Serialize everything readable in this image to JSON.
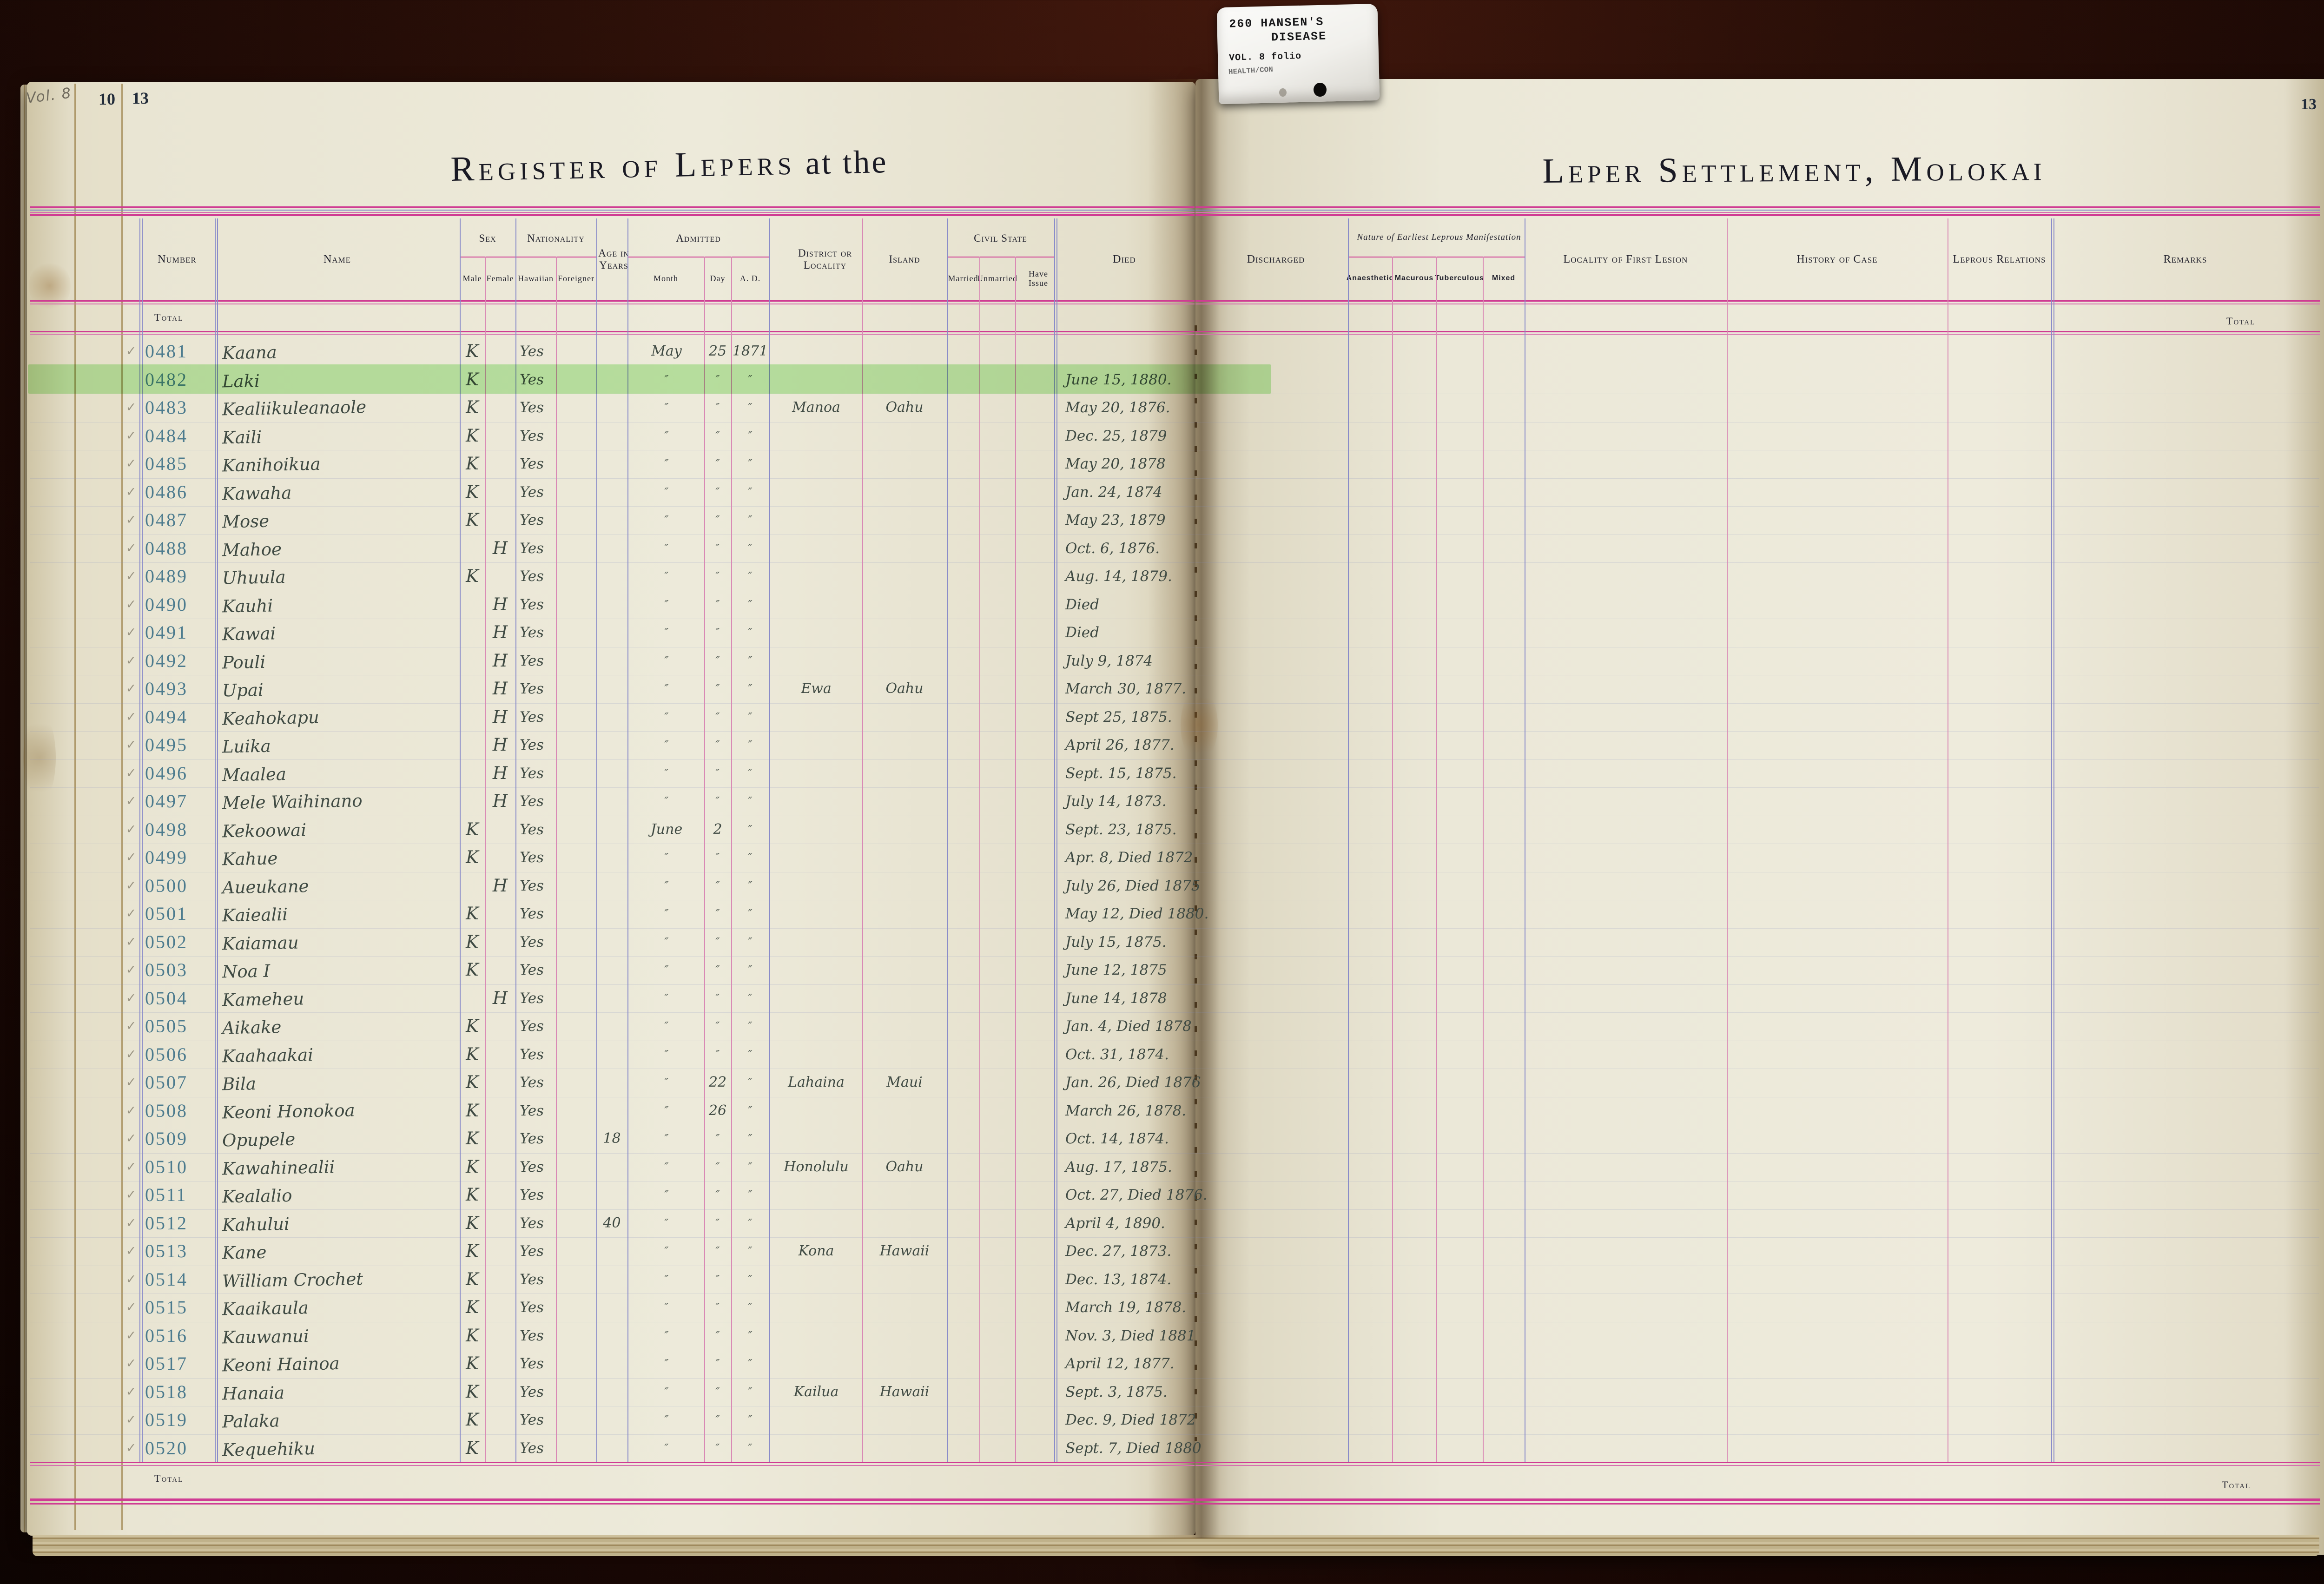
{
  "tab": {
    "line1": "260  HANSEN'S",
    "line2": "DISEASE",
    "line3": "VOL. 8 folio",
    "line4": "HEALTH/CON"
  },
  "page_left": {
    "vol_note": "Vol. 8",
    "edge_number": "10",
    "page_number": "13",
    "title_main": "Register of Lepers",
    "title_suffix": " at the"
  },
  "page_right": {
    "page_number": "13",
    "title": "Leper Settlement, Molokai"
  },
  "headers": {
    "number": "Number",
    "name": "Name",
    "sex": {
      "label": "Sex",
      "male": "Male",
      "female": "Female"
    },
    "nationality": {
      "label": "Nationality",
      "hawaiian": "Hawaiian",
      "foreigner": "Foreigner"
    },
    "age": "Age in Years",
    "admitted": {
      "label": "Admitted",
      "month": "Month",
      "day": "Day",
      "ad": "A. D."
    },
    "district": "District or Locality",
    "island": "Island",
    "civil": {
      "label": "Civil State",
      "married": "Married",
      "unmarried": "Unmarried",
      "have_issue": "Have Issue"
    },
    "died": "Died",
    "discharged": "Discharged",
    "nature": {
      "label": "Nature of Earliest Leprous Manifestation",
      "anaesthetic": "Anaesthetic",
      "macurous": "Macurous",
      "tuberculous": "Tuberculous",
      "mixed": "Mixed"
    },
    "locality_first_lesion": "Locality of First Lesion",
    "history_of_case": "History of Case",
    "leprous_relations": "Leprous Relations",
    "remarks": "Remarks"
  },
  "totals": {
    "top_left": "Total",
    "top_right": "Total",
    "bottom_left": "Total",
    "bottom_right": "Total"
  },
  "marks": {
    "check": "✓",
    "ditto": "″",
    "male_mark": "K",
    "female_mark": "H"
  },
  "colors": {
    "rule_pink": "#cf3c93",
    "rule_blue": "#8a8cc9",
    "ink": "#3f4a43",
    "number_ink": "#4c7b8e",
    "highlight_green": "#8ee576",
    "paper": "#edeada"
  },
  "rows": [
    {
      "check": true,
      "n": "0481",
      "name": "Kaana",
      "sex": "K",
      "sexcol": "male",
      "haw": "Yes",
      "age": "",
      "month": "May",
      "day": "25",
      "ad": "1871",
      "district": "",
      "island": "",
      "died": "",
      "hl": false
    },
    {
      "check": false,
      "n": "0482",
      "name": "Laki",
      "sex": "K",
      "sexcol": "male",
      "haw": "Yes",
      "age": "",
      "month": "″",
      "day": "″",
      "ad": "″",
      "district": "",
      "island": "",
      "died": "June 15, 1880.",
      "hl": true
    },
    {
      "check": true,
      "n": "0483",
      "name": "Kealiikuleanaole",
      "sex": "K",
      "sexcol": "male",
      "haw": "Yes",
      "age": "",
      "month": "″",
      "day": "″",
      "ad": "″",
      "district": "Manoa",
      "island": "Oahu",
      "died": "May 20, 1876.",
      "hl": false
    },
    {
      "check": true,
      "n": "0484",
      "name": "Kaili",
      "sex": "K",
      "sexcol": "male",
      "haw": "Yes",
      "age": "",
      "month": "″",
      "day": "″",
      "ad": "″",
      "district": "",
      "island": "",
      "died": "Dec. 25, 1879",
      "hl": false
    },
    {
      "check": true,
      "n": "0485",
      "name": "Kanihoikua",
      "sex": "K",
      "sexcol": "male",
      "haw": "Yes",
      "age": "",
      "month": "″",
      "day": "″",
      "ad": "″",
      "district": "",
      "island": "",
      "died": "May 20, 1878",
      "hl": false
    },
    {
      "check": true,
      "n": "0486",
      "name": "Kawaha",
      "sex": "K",
      "sexcol": "male",
      "haw": "Yes",
      "age": "",
      "month": "″",
      "day": "″",
      "ad": "″",
      "district": "",
      "island": "",
      "died": "Jan. 24, 1874",
      "hl": false
    },
    {
      "check": true,
      "n": "0487",
      "name": "Mose",
      "sex": "K",
      "sexcol": "male",
      "haw": "Yes",
      "age": "",
      "month": "″",
      "day": "″",
      "ad": "″",
      "district": "",
      "island": "",
      "died": "May 23, 1879",
      "hl": false
    },
    {
      "check": true,
      "n": "0488",
      "name": "Mahoe",
      "sex": "H",
      "sexcol": "female",
      "haw": "Yes",
      "age": "",
      "month": "″",
      "day": "″",
      "ad": "″",
      "district": "",
      "island": "",
      "died": "Oct. 6, 1876.",
      "hl": false
    },
    {
      "check": true,
      "n": "0489",
      "name": "Uhuula",
      "sex": "K",
      "sexcol": "male",
      "haw": "Yes",
      "age": "",
      "month": "″",
      "day": "″",
      "ad": "″",
      "district": "",
      "island": "",
      "died": "Aug. 14, 1879.",
      "hl": false
    },
    {
      "check": true,
      "n": "0490",
      "name": "Kauhi",
      "sex": "H",
      "sexcol": "female",
      "haw": "Yes",
      "age": "",
      "month": "″",
      "day": "″",
      "ad": "″",
      "district": "",
      "island": "",
      "died": "Died",
      "hl": false
    },
    {
      "check": true,
      "n": "0491",
      "name": "Kawai",
      "sex": "H",
      "sexcol": "female",
      "haw": "Yes",
      "age": "",
      "month": "″",
      "day": "″",
      "ad": "″",
      "district": "",
      "island": "",
      "died": "Died",
      "hl": false
    },
    {
      "check": true,
      "n": "0492",
      "name": "Pouli",
      "sex": "H",
      "sexcol": "female",
      "haw": "Yes",
      "age": "",
      "month": "″",
      "day": "″",
      "ad": "″",
      "district": "",
      "island": "",
      "died": "July 9, 1874",
      "hl": false
    },
    {
      "check": true,
      "n": "0493",
      "name": "Upai",
      "sex": "H",
      "sexcol": "female",
      "haw": "Yes",
      "age": "",
      "month": "″",
      "day": "″",
      "ad": "″",
      "district": "Ewa",
      "island": "Oahu",
      "died": "March 30, 1877.",
      "hl": false
    },
    {
      "check": true,
      "n": "0494",
      "name": "Keahokapu",
      "sex": "H",
      "sexcol": "female",
      "haw": "Yes",
      "age": "",
      "month": "″",
      "day": "″",
      "ad": "″",
      "district": "",
      "island": "",
      "died": "Sept 25, 1875.",
      "hl": false
    },
    {
      "check": true,
      "n": "0495",
      "name": "Luika",
      "sex": "H",
      "sexcol": "female",
      "haw": "Yes",
      "age": "",
      "month": "″",
      "day": "″",
      "ad": "″",
      "district": "",
      "island": "",
      "died": "April 26, 1877.",
      "hl": false
    },
    {
      "check": true,
      "n": "0496",
      "name": "Maalea",
      "sex": "H",
      "sexcol": "female",
      "haw": "Yes",
      "age": "",
      "month": "″",
      "day": "″",
      "ad": "″",
      "district": "",
      "island": "",
      "died": "Sept. 15, 1875.",
      "hl": false
    },
    {
      "check": true,
      "n": "0497",
      "name": "Mele Waihinano",
      "sex": "H",
      "sexcol": "female",
      "haw": "Yes",
      "age": "",
      "month": "″",
      "day": "″",
      "ad": "″",
      "district": "",
      "island": "",
      "died": "July 14, 1873.",
      "hl": false
    },
    {
      "check": true,
      "n": "0498",
      "name": "Kekoowai",
      "sex": "K",
      "sexcol": "male",
      "haw": "Yes",
      "age": "",
      "month": "June",
      "day": "2",
      "ad": "″",
      "district": "",
      "island": "",
      "died": "Sept. 23, 1875.",
      "hl": false
    },
    {
      "check": true,
      "n": "0499",
      "name": "Kahue",
      "sex": "K",
      "sexcol": "male",
      "haw": "Yes",
      "age": "",
      "month": "″",
      "day": "″",
      "ad": "″",
      "district": "",
      "island": "",
      "died": "Apr. 8, Died 1872",
      "hl": false
    },
    {
      "check": true,
      "n": "0500",
      "name": "Aueukane",
      "sex": "H",
      "sexcol": "female",
      "haw": "Yes",
      "age": "",
      "month": "″",
      "day": "″",
      "ad": "″",
      "district": "",
      "island": "",
      "died": "July 26, Died 1875",
      "hl": false
    },
    {
      "check": true,
      "n": "0501",
      "name": "Kaiealii",
      "sex": "K",
      "sexcol": "male",
      "haw": "Yes",
      "age": "",
      "month": "″",
      "day": "″",
      "ad": "″",
      "district": "",
      "island": "",
      "died": "May 12, Died 1880.",
      "hl": false
    },
    {
      "check": true,
      "n": "0502",
      "name": "Kaiamau",
      "sex": "K",
      "sexcol": "male",
      "haw": "Yes",
      "age": "",
      "month": "″",
      "day": "″",
      "ad": "″",
      "district": "",
      "island": "",
      "died": "July 15, 1875.",
      "hl": false
    },
    {
      "check": true,
      "n": "0503",
      "name": "Noa I",
      "sex": "K",
      "sexcol": "male",
      "haw": "Yes",
      "age": "",
      "month": "″",
      "day": "″",
      "ad": "″",
      "district": "",
      "island": "",
      "died": "June 12, 1875",
      "hl": false
    },
    {
      "check": true,
      "n": "0504",
      "name": "Kameheu",
      "sex": "H",
      "sexcol": "female",
      "haw": "Yes",
      "age": "",
      "month": "″",
      "day": "″",
      "ad": "″",
      "district": "",
      "island": "",
      "died": "June 14, 1878",
      "hl": false
    },
    {
      "check": true,
      "n": "0505",
      "name": "Aikake",
      "sex": "K",
      "sexcol": "male",
      "haw": "Yes",
      "age": "",
      "month": "″",
      "day": "″",
      "ad": "″",
      "district": "",
      "island": "",
      "died": "Jan. 4, Died 1878",
      "hl": false
    },
    {
      "check": true,
      "n": "0506",
      "name": "Kaahaakai",
      "sex": "K",
      "sexcol": "male",
      "haw": "Yes",
      "age": "",
      "month": "″",
      "day": "″",
      "ad": "″",
      "district": "",
      "island": "",
      "died": "Oct. 31, 1874.",
      "hl": false
    },
    {
      "check": true,
      "n": "0507",
      "name": "Bila",
      "sex": "K",
      "sexcol": "male",
      "haw": "Yes",
      "age": "",
      "month": "″",
      "day": "22",
      "ad": "″",
      "district": "Lahaina",
      "island": "Maui",
      "died": "Jan. 26, Died 1876",
      "hl": false
    },
    {
      "check": true,
      "n": "0508",
      "name": "Keoni Honokoa",
      "sex": "K",
      "sexcol": "male",
      "haw": "Yes",
      "age": "",
      "month": "″",
      "day": "26",
      "ad": "″",
      "district": "",
      "island": "",
      "died": "March 26, 1878.",
      "hl": false
    },
    {
      "check": true,
      "n": "0509",
      "name": "Opupele",
      "sex": "K",
      "sexcol": "male",
      "haw": "Yes",
      "age": "18",
      "month": "″",
      "day": "″",
      "ad": "″",
      "district": "",
      "island": "",
      "died": "Oct. 14, 1874.",
      "hl": false
    },
    {
      "check": true,
      "n": "0510",
      "name": "Kawahinealii",
      "sex": "K",
      "sexcol": "male",
      "haw": "Yes",
      "age": "",
      "month": "″",
      "day": "″",
      "ad": "″",
      "district": "Honolulu",
      "island": "Oahu",
      "died": "Aug. 17, 1875.",
      "hl": false
    },
    {
      "check": true,
      "n": "0511",
      "name": "Kealalio",
      "sex": "K",
      "sexcol": "male",
      "haw": "Yes",
      "age": "",
      "month": "″",
      "day": "″",
      "ad": "″",
      "district": "",
      "island": "",
      "died": "Oct. 27, Died 1876.",
      "hl": false
    },
    {
      "check": true,
      "n": "0512",
      "name": "Kahului",
      "sex": "K",
      "sexcol": "male",
      "haw": "Yes",
      "age": "40",
      "month": "″",
      "day": "″",
      "ad": "″",
      "district": "",
      "island": "",
      "died": "April 4, 1890.",
      "hl": false
    },
    {
      "check": true,
      "n": "0513",
      "name": "Kane",
      "sex": "K",
      "sexcol": "male",
      "haw": "Yes",
      "age": "",
      "month": "″",
      "day": "″",
      "ad": "″",
      "district": "Kona",
      "island": "Hawaii",
      "died": "Dec. 27, 1873.",
      "hl": false
    },
    {
      "check": true,
      "n": "0514",
      "name": "William Crochet",
      "sex": "K",
      "sexcol": "male",
      "haw": "Yes",
      "age": "",
      "month": "″",
      "day": "″",
      "ad": "″",
      "district": "",
      "island": "",
      "died": "Dec. 13, 1874.",
      "hl": false
    },
    {
      "check": true,
      "n": "0515",
      "name": "Kaaikaula",
      "sex": "K",
      "sexcol": "male",
      "haw": "Yes",
      "age": "",
      "month": "″",
      "day": "″",
      "ad": "″",
      "district": "",
      "island": "",
      "died": "March 19, 1878.",
      "hl": false
    },
    {
      "check": true,
      "n": "0516",
      "name": "Kauwanui",
      "sex": "K",
      "sexcol": "male",
      "haw": "Yes",
      "age": "",
      "month": "″",
      "day": "″",
      "ad": "″",
      "district": "",
      "island": "",
      "died": "Nov. 3, Died 1881",
      "hl": false
    },
    {
      "check": true,
      "n": "0517",
      "name": "Keoni Hainoa",
      "sex": "K",
      "sexcol": "male",
      "haw": "Yes",
      "age": "",
      "month": "″",
      "day": "″",
      "ad": "″",
      "district": "",
      "island": "",
      "died": "April 12, 1877.",
      "hl": false
    },
    {
      "check": true,
      "n": "0518",
      "name": "Hanaia",
      "sex": "K",
      "sexcol": "male",
      "haw": "Yes",
      "age": "",
      "month": "″",
      "day": "″",
      "ad": "″",
      "district": "Kailua",
      "island": "Hawaii",
      "died": "Sept. 3, 1875.",
      "hl": false
    },
    {
      "check": true,
      "n": "0519",
      "name": "Palaka",
      "sex": "K",
      "sexcol": "male",
      "haw": "Yes",
      "age": "",
      "month": "″",
      "day": "″",
      "ad": "″",
      "district": "",
      "island": "",
      "died": "Dec. 9, Died 1872",
      "hl": false
    },
    {
      "check": true,
      "n": "0520",
      "name": "Kequehiku",
      "sex": "K",
      "sexcol": "male",
      "haw": "Yes",
      "age": "",
      "month": "″",
      "day": "″",
      "ad": "″",
      "district": "",
      "island": "",
      "died": "Sept. 7, Died 1880",
      "hl": false
    }
  ]
}
